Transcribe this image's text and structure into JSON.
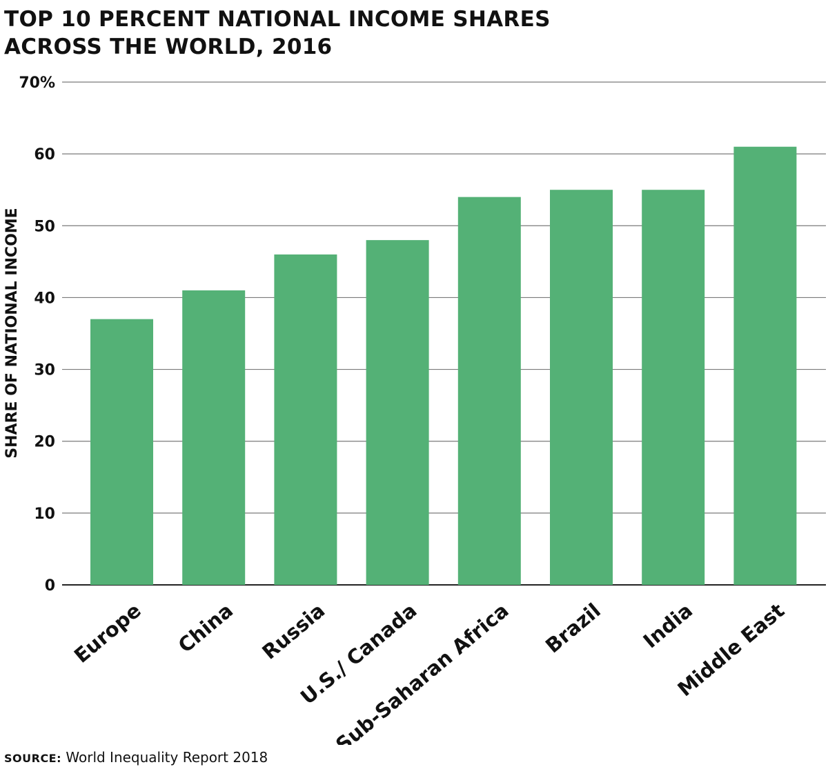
{
  "chart_data": {
    "type": "bar",
    "title_lines": [
      "TOP 10 PERCENT NATIONAL INCOME SHARES",
      "ACROSS THE WORLD, 2016"
    ],
    "ylabel": "SHARE OF NATIONAL INCOME",
    "xlabel": "",
    "categories": [
      "Europe",
      "China",
      "Russia",
      "U.S./ Canada",
      "Sub-Saharan Africa",
      "Brazil",
      "India",
      "Middle East"
    ],
    "values": [
      37,
      41,
      46,
      48,
      54,
      55,
      55,
      61
    ],
    "ylim": [
      0,
      70
    ],
    "yticks": [
      0,
      10,
      20,
      30,
      40,
      50,
      60,
      70
    ],
    "ytick_labels": [
      "0",
      "10",
      "20",
      "30",
      "40",
      "50",
      "60",
      "70%"
    ],
    "grid": true,
    "bar_color": "#54b176",
    "gridline_color": "#7a7a7a"
  },
  "source": {
    "label": "SOURCE:",
    "text": "World Inequality Report 2018"
  }
}
